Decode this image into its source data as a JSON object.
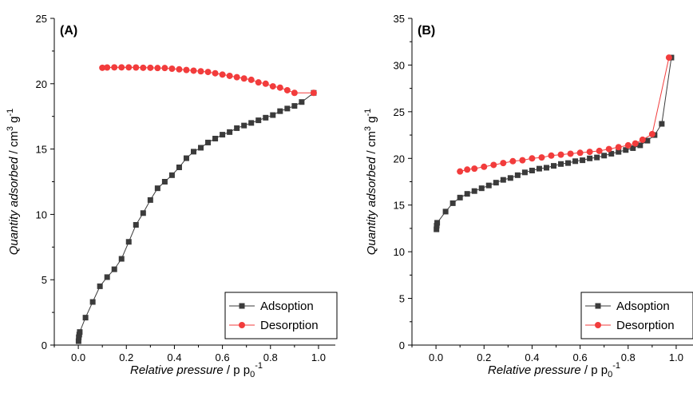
{
  "colors": {
    "adsorption": "#3b3b3b",
    "desorption": "#f23c3c",
    "axis": "#000000"
  },
  "chart_data": [
    {
      "type": "scatter",
      "panel_label": "(A)",
      "xlabel_italic": "Relative pressure",
      "xlabel_rest": " / p p",
      "xlabel_sub": "0",
      "xlabel_sup": "-1",
      "ylabel_italic": "Quantity adsorbed",
      "ylabel_rest": " / cm",
      "ylabel_sup1": "3",
      "ylabel_mid": " g",
      "ylabel_sup2": "-1",
      "xlim": [
        -0.1,
        1.07
      ],
      "ylim": [
        0,
        25
      ],
      "xticks": [
        0.0,
        0.2,
        0.4,
        0.6,
        0.8,
        1.0
      ],
      "xtick_labels": [
        "0.0",
        "0.2",
        "0.4",
        "0.6",
        "0.8",
        "1.0"
      ],
      "yticks": [
        0,
        5,
        10,
        15,
        20,
        25
      ],
      "ytick_labels": [
        "0",
        "5",
        "10",
        "15",
        "20",
        "25"
      ],
      "legend_position": "bottom-right",
      "series": [
        {
          "name": "Adsoption",
          "marker": "square",
          "x": [
            0.001,
            0.002,
            0.004,
            0.006,
            0.03,
            0.06,
            0.09,
            0.12,
            0.15,
            0.18,
            0.21,
            0.24,
            0.27,
            0.3,
            0.33,
            0.36,
            0.39,
            0.42,
            0.45,
            0.48,
            0.51,
            0.54,
            0.57,
            0.6,
            0.63,
            0.66,
            0.69,
            0.72,
            0.75,
            0.78,
            0.81,
            0.84,
            0.87,
            0.9,
            0.93,
            0.98
          ],
          "y": [
            0.3,
            0.6,
            0.8,
            1.0,
            2.1,
            3.3,
            4.5,
            5.2,
            5.8,
            6.6,
            7.9,
            9.2,
            10.1,
            11.1,
            12.0,
            12.5,
            13.0,
            13.6,
            14.3,
            14.8,
            15.1,
            15.5,
            15.8,
            16.1,
            16.3,
            16.6,
            16.8,
            17.0,
            17.2,
            17.4,
            17.6,
            17.9,
            18.1,
            18.3,
            18.6,
            19.3
          ]
        },
        {
          "name": "Desorption",
          "marker": "circle",
          "x": [
            0.98,
            0.9,
            0.87,
            0.84,
            0.81,
            0.78,
            0.75,
            0.72,
            0.69,
            0.66,
            0.63,
            0.6,
            0.57,
            0.54,
            0.51,
            0.48,
            0.45,
            0.42,
            0.39,
            0.36,
            0.33,
            0.3,
            0.27,
            0.24,
            0.21,
            0.18,
            0.15,
            0.12,
            0.1
          ],
          "y": [
            19.3,
            19.3,
            19.5,
            19.7,
            19.8,
            20.0,
            20.1,
            20.3,
            20.4,
            20.5,
            20.6,
            20.7,
            20.8,
            20.9,
            20.95,
            21.0,
            21.05,
            21.1,
            21.15,
            21.2,
            21.2,
            21.22,
            21.22,
            21.24,
            21.25,
            21.25,
            21.25,
            21.24,
            21.22
          ]
        }
      ]
    },
    {
      "type": "scatter",
      "panel_label": "(B)",
      "xlabel_italic": "Relative pressure",
      "xlabel_rest": " / p p",
      "xlabel_sub": "0",
      "xlabel_sup": "-1",
      "ylabel_italic": "Quantity adsorbed",
      "ylabel_rest": " / cm",
      "ylabel_sup1": "3",
      "ylabel_mid": " g",
      "ylabel_sup2": "-1",
      "xlim": [
        -0.1,
        1.07
      ],
      "ylim": [
        0,
        35
      ],
      "xticks": [
        0.0,
        0.2,
        0.4,
        0.6,
        0.8,
        1.0
      ],
      "xtick_labels": [
        "0.0",
        "0.2",
        "0.4",
        "0.6",
        "0.8",
        "1.0"
      ],
      "yticks": [
        0,
        5,
        10,
        15,
        20,
        25,
        30,
        35
      ],
      "ytick_labels": [
        "0",
        "5",
        "10",
        "15",
        "20",
        "25",
        "30",
        "35"
      ],
      "legend_position": "bottom-right",
      "series": [
        {
          "name": "Adsoption",
          "marker": "square",
          "x": [
            0.002,
            0.003,
            0.005,
            0.04,
            0.07,
            0.1,
            0.13,
            0.16,
            0.19,
            0.22,
            0.25,
            0.28,
            0.31,
            0.34,
            0.37,
            0.4,
            0.43,
            0.46,
            0.49,
            0.52,
            0.55,
            0.58,
            0.61,
            0.64,
            0.67,
            0.7,
            0.73,
            0.76,
            0.79,
            0.82,
            0.85,
            0.88,
            0.91,
            0.94,
            0.98
          ],
          "y": [
            12.4,
            12.8,
            13.1,
            14.3,
            15.2,
            15.8,
            16.2,
            16.5,
            16.8,
            17.1,
            17.4,
            17.7,
            17.9,
            18.2,
            18.5,
            18.7,
            18.9,
            19.0,
            19.2,
            19.4,
            19.5,
            19.7,
            19.8,
            20.0,
            20.1,
            20.3,
            20.5,
            20.7,
            20.9,
            21.1,
            21.4,
            21.9,
            22.5,
            23.7,
            30.8
          ]
        },
        {
          "name": "Desorption",
          "marker": "circle",
          "x": [
            0.97,
            0.9,
            0.86,
            0.83,
            0.8,
            0.76,
            0.72,
            0.68,
            0.64,
            0.6,
            0.56,
            0.52,
            0.48,
            0.44,
            0.4,
            0.36,
            0.32,
            0.28,
            0.24,
            0.2,
            0.16,
            0.13,
            0.1
          ],
          "y": [
            30.8,
            22.6,
            22.0,
            21.6,
            21.4,
            21.2,
            21.0,
            20.8,
            20.7,
            20.6,
            20.5,
            20.4,
            20.3,
            20.1,
            20.0,
            19.8,
            19.7,
            19.5,
            19.3,
            19.1,
            18.9,
            18.8,
            18.6
          ]
        }
      ]
    }
  ]
}
